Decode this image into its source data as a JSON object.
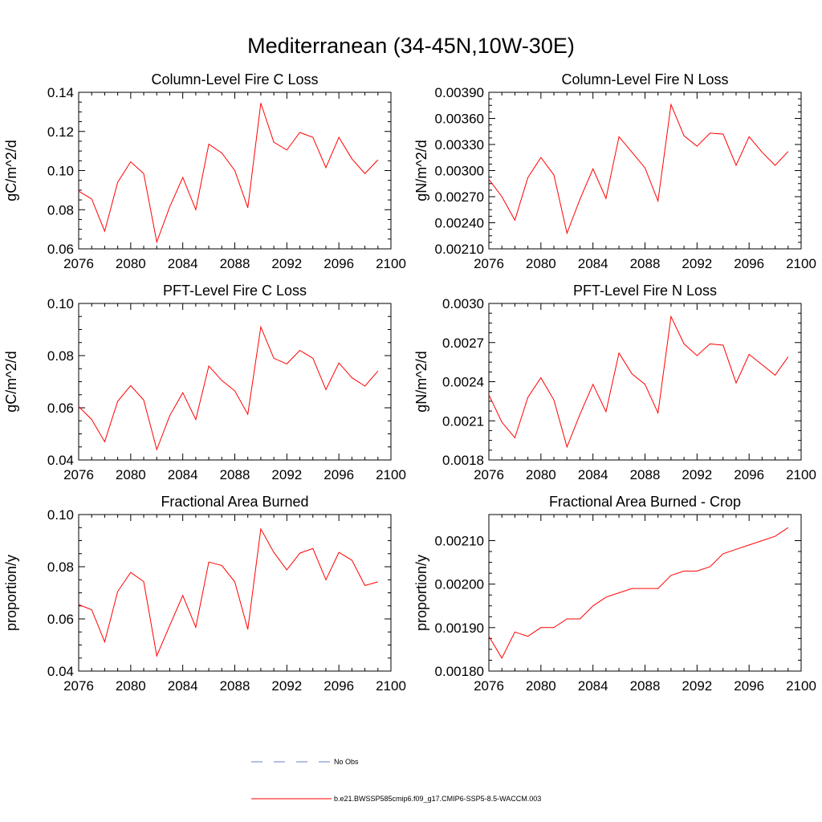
{
  "title": "Mediterranean (34-45N,10W-30E)",
  "legend": {
    "obs_label": "No Obs",
    "model_label": "b.e21.BWSSP585cmip6.f09_g17.CMIP6-SSP5-8.5-WACCM.003",
    "obs_color": "#6a7cc8",
    "model_color": "#ff0000"
  },
  "chart_data": [
    {
      "type": "line",
      "title": "Column-Level Fire C Loss",
      "ylabel": "gC/m^2/d",
      "xlim": [
        2076,
        2100
      ],
      "ylim": [
        0.06,
        0.14
      ],
      "xticks": [
        "2076",
        "2080",
        "2084",
        "2088",
        "2092",
        "2096",
        "2100"
      ],
      "yticks": [
        "0.06",
        "0.08",
        "0.10",
        "0.12",
        "0.14"
      ],
      "x": [
        2076,
        2077,
        2078,
        2079,
        2080,
        2081,
        2082,
        2083,
        2084,
        2085,
        2086,
        2087,
        2088,
        2089,
        2090,
        2091,
        2092,
        2093,
        2094,
        2095,
        2096,
        2097,
        2098,
        2099
      ],
      "values": [
        0.0895,
        0.0855,
        0.069,
        0.094,
        0.1045,
        0.0985,
        0.0635,
        0.0815,
        0.0965,
        0.08,
        0.1135,
        0.109,
        0.1,
        0.081,
        0.1345,
        0.1145,
        0.1105,
        0.1195,
        0.117,
        0.1015,
        0.117,
        0.106,
        0.0985,
        0.1055
      ]
    },
    {
      "type": "line",
      "title": "Column-Level Fire N Loss",
      "ylabel": "gN/m^2/d",
      "xlim": [
        2076,
        2100
      ],
      "ylim": [
        0.0021,
        0.0039
      ],
      "xticks": [
        "2076",
        "2080",
        "2084",
        "2088",
        "2092",
        "2096",
        "2100"
      ],
      "yticks": [
        "0.00210",
        "0.00240",
        "0.00270",
        "0.00300",
        "0.00330",
        "0.00360",
        "0.00390"
      ],
      "x": [
        2076,
        2077,
        2078,
        2079,
        2080,
        2081,
        2082,
        2083,
        2084,
        2085,
        2086,
        2087,
        2088,
        2089,
        2090,
        2091,
        2092,
        2093,
        2094,
        2095,
        2096,
        2097,
        2098,
        2099
      ],
      "values": [
        0.0029,
        0.0027,
        0.00243,
        0.00292,
        0.00315,
        0.00295,
        0.00228,
        0.00267,
        0.00302,
        0.00268,
        0.00339,
        0.00321,
        0.00303,
        0.00265,
        0.00376,
        0.0034,
        0.00328,
        0.00343,
        0.00342,
        0.00306,
        0.00339,
        0.00321,
        0.00306,
        0.00322
      ]
    },
    {
      "type": "line",
      "title": "PFT-Level Fire C Loss",
      "ylabel": "gC/m^2/d",
      "xlim": [
        2076,
        2100
      ],
      "ylim": [
        0.04,
        0.1
      ],
      "xticks": [
        "2076",
        "2080",
        "2084",
        "2088",
        "2092",
        "2096",
        "2100"
      ],
      "yticks": [
        "0.04",
        "0.06",
        "0.08",
        "0.10"
      ],
      "x": [
        2076,
        2077,
        2078,
        2079,
        2080,
        2081,
        2082,
        2083,
        2084,
        2085,
        2086,
        2087,
        2088,
        2089,
        2090,
        2091,
        2092,
        2093,
        2094,
        2095,
        2096,
        2097,
        2098,
        2099
      ],
      "values": [
        0.0605,
        0.0555,
        0.047,
        0.0625,
        0.0685,
        0.063,
        0.044,
        0.057,
        0.0658,
        0.0555,
        0.076,
        0.0705,
        0.0665,
        0.0575,
        0.091,
        0.079,
        0.0768,
        0.082,
        0.079,
        0.067,
        0.0772,
        0.0715,
        0.0683,
        0.0741
      ]
    },
    {
      "type": "line",
      "title": "PFT-Level Fire N Loss",
      "ylabel": "gN/m^2/d",
      "xlim": [
        2076,
        2100
      ],
      "ylim": [
        0.0018,
        0.003
      ],
      "xticks": [
        "2076",
        "2080",
        "2084",
        "2088",
        "2092",
        "2096",
        "2100"
      ],
      "yticks": [
        "0.0018",
        "0.0021",
        "0.0024",
        "0.0027",
        "0.0030"
      ],
      "x": [
        2076,
        2077,
        2078,
        2079,
        2080,
        2081,
        2082,
        2083,
        2084,
        2085,
        2086,
        2087,
        2088,
        2089,
        2090,
        2091,
        2092,
        2093,
        2094,
        2095,
        2096,
        2097,
        2098,
        2099
      ],
      "values": [
        0.0023,
        0.00209,
        0.00197,
        0.00228,
        0.00243,
        0.00226,
        0.0019,
        0.00215,
        0.00238,
        0.00217,
        0.00262,
        0.00246,
        0.00238,
        0.00216,
        0.0029,
        0.00269,
        0.0026,
        0.00269,
        0.00268,
        0.00239,
        0.00261,
        0.00253,
        0.00245,
        0.00259
      ]
    },
    {
      "type": "line",
      "title": "Fractional Area Burned",
      "ylabel": "proportion/y",
      "xlim": [
        2076,
        2100
      ],
      "ylim": [
        0.04,
        0.1
      ],
      "xticks": [
        "2076",
        "2080",
        "2084",
        "2088",
        "2092",
        "2096",
        "2100"
      ],
      "yticks": [
        "0.04",
        "0.06",
        "0.08",
        "0.10"
      ],
      "x": [
        2076,
        2077,
        2078,
        2079,
        2080,
        2081,
        2082,
        2083,
        2084,
        2085,
        2086,
        2087,
        2088,
        2089,
        2090,
        2091,
        2092,
        2093,
        2094,
        2095,
        2096,
        2097,
        2098,
        2099
      ],
      "values": [
        0.0655,
        0.0635,
        0.0512,
        0.0705,
        0.0778,
        0.0743,
        0.0458,
        0.0575,
        0.069,
        0.0568,
        0.0818,
        0.0805,
        0.0742,
        0.056,
        0.0945,
        0.0855,
        0.0788,
        0.0852,
        0.087,
        0.075,
        0.0855,
        0.0825,
        0.0728,
        0.0742
      ]
    },
    {
      "type": "line",
      "title": "Fractional Area Burned - Crop",
      "ylabel": "proportion/y",
      "xlim": [
        2076,
        2100
      ],
      "ylim": [
        0.0018,
        0.00216
      ],
      "xticks": [
        "2076",
        "2080",
        "2084",
        "2088",
        "2092",
        "2096",
        "2100"
      ],
      "yticks": [
        "0.00180",
        "0.00190",
        "0.00200",
        "0.00210"
      ],
      "x": [
        2076,
        2077,
        2078,
        2079,
        2080,
        2081,
        2082,
        2083,
        2084,
        2085,
        2086,
        2087,
        2088,
        2089,
        2090,
        2091,
        2092,
        2093,
        2094,
        2095,
        2096,
        2097,
        2098,
        2099
      ],
      "values": [
        0.00188,
        0.00183,
        0.00189,
        0.00188,
        0.0019,
        0.0019,
        0.00192,
        0.00192,
        0.00195,
        0.00197,
        0.00198,
        0.00199,
        0.00199,
        0.00199,
        0.00202,
        0.00203,
        0.00203,
        0.00204,
        0.00207,
        0.00208,
        0.00209,
        0.0021,
        0.00211,
        0.00213
      ]
    }
  ]
}
